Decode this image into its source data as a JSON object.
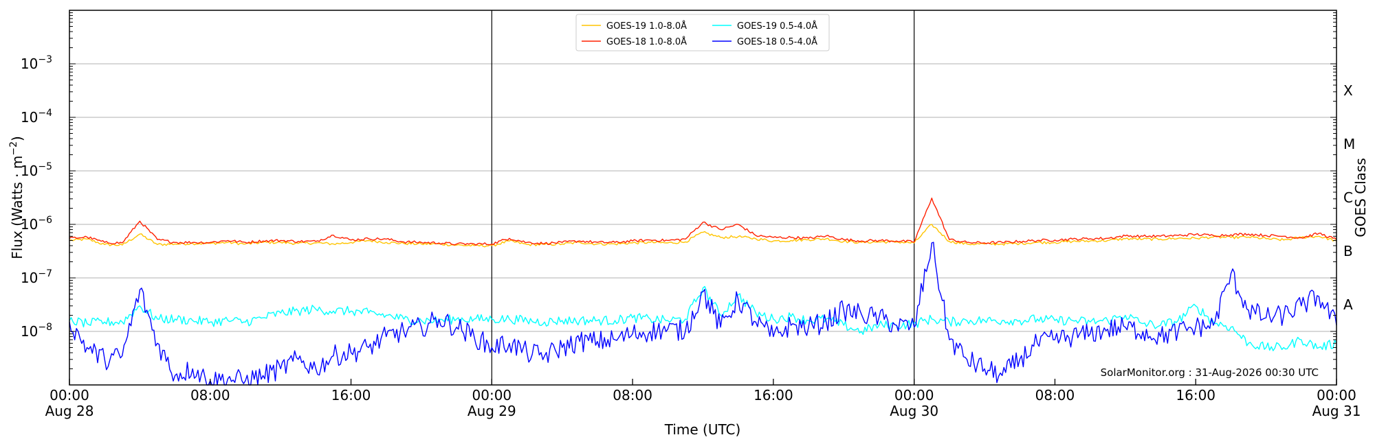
{
  "chart_data": {
    "type": "line",
    "xlabel": "Time (UTC)",
    "ylabel_main": "Flux (Watts · m",
    "ylabel_sup": "−2",
    "ylabel_close": ")",
    "y2label": "GOES Class",
    "yscale": "log",
    "ylim": [
      1e-09,
      0.01
    ],
    "xlim": [
      "2026-08-28T00:00",
      "2026-08-31T00:00"
    ],
    "grid": "horizontal",
    "legend_position": "top-center",
    "credit": "SolarMonitor.org : 31-Aug-2026 00:30 UTC",
    "x_ticks": [
      {
        "time": "2026-08-28T00:00",
        "line1": "00:00",
        "line2": "Aug 28"
      },
      {
        "time": "2026-08-28T08:00",
        "line1": "08:00",
        "line2": ""
      },
      {
        "time": "2026-08-28T16:00",
        "line1": "16:00",
        "line2": ""
      },
      {
        "time": "2026-08-29T00:00",
        "line1": "00:00",
        "line2": "Aug 29"
      },
      {
        "time": "2026-08-29T08:00",
        "line1": "08:00",
        "line2": ""
      },
      {
        "time": "2026-08-29T16:00",
        "line1": "16:00",
        "line2": ""
      },
      {
        "time": "2026-08-30T00:00",
        "line1": "00:00",
        "line2": "Aug 30"
      },
      {
        "time": "2026-08-30T08:00",
        "line1": "08:00",
        "line2": ""
      },
      {
        "time": "2026-08-30T16:00",
        "line1": "16:00",
        "line2": ""
      },
      {
        "time": "2026-08-31T00:00",
        "line1": "00:00",
        "line2": "Aug 31"
      }
    ],
    "day_boundaries": [
      "2026-08-29T00:00",
      "2026-08-30T00:00"
    ],
    "y_ticks": [
      {
        "value": 1e-08,
        "label": "10",
        "exp": "−8"
      },
      {
        "value": 1e-07,
        "label": "10",
        "exp": "−7"
      },
      {
        "value": 1e-06,
        "label": "10",
        "exp": "−6"
      },
      {
        "value": 1e-05,
        "label": "10",
        "exp": "−5"
      },
      {
        "value": 0.0001,
        "label": "10",
        "exp": "−4"
      },
      {
        "value": 0.001,
        "label": "10",
        "exp": "−3"
      }
    ],
    "goes_classes": [
      {
        "label": "A",
        "value": 3.16e-08
      },
      {
        "label": "B",
        "value": 3.16e-07
      },
      {
        "label": "C",
        "value": 3.16e-06
      },
      {
        "label": "M",
        "value": 3.16e-05
      },
      {
        "label": "X",
        "value": 0.000316
      }
    ],
    "series": [
      {
        "name": "GOES-19 1.0-8.0Å",
        "color": "#ffc400",
        "start": "2026-08-28T00:00",
        "step_minutes": 60,
        "values": [
          5e-07,
          5.3e-07,
          4.2e-07,
          4.1e-07,
          6.6e-07,
          4.2e-07,
          4.3e-07,
          4.4e-07,
          4.4e-07,
          4.6e-07,
          4.3e-07,
          4.6e-07,
          4.6e-07,
          4.4e-07,
          4.5e-07,
          4.3e-07,
          4.6e-07,
          5e-07,
          4.6e-07,
          4.4e-07,
          4.3e-07,
          4.3e-07,
          4.1e-07,
          4e-07,
          4e-07,
          4.9e-07,
          4.2e-07,
          4.2e-07,
          4.3e-07,
          4.6e-07,
          4.3e-07,
          4.3e-07,
          4.5e-07,
          4.6e-07,
          4.5e-07,
          4.7e-07,
          7.1e-07,
          5.7e-07,
          5.9e-07,
          5.4e-07,
          4.9e-07,
          5e-07,
          5.2e-07,
          5.4e-07,
          4.8e-07,
          4.6e-07,
          4.7e-07,
          4.7e-07,
          4.5e-07,
          1e-06,
          4.8e-07,
          4.3e-07,
          4.3e-07,
          4.3e-07,
          4.4e-07,
          4.6e-07,
          4.6e-07,
          4.8e-07,
          4.9e-07,
          5e-07,
          5.4e-07,
          5.3e-07,
          5.3e-07,
          5.5e-07,
          5.5e-07,
          5.8e-07,
          5.7e-07,
          5.8e-07,
          5.4e-07,
          5.1e-07,
          5.7e-07,
          6e-07,
          4.9e-07
        ]
      },
      {
        "name": "GOES-18 1.0-8.0Å",
        "color": "#ff2000",
        "start": "2026-08-28T00:00",
        "step_minutes": 60,
        "values": [
          5.5e-07,
          5.8e-07,
          4.6e-07,
          4.5e-07,
          1.15e-06,
          5.2e-07,
          4.6e-07,
          4.6e-07,
          4.6e-07,
          5e-07,
          4.6e-07,
          4.9e-07,
          5e-07,
          4.8e-07,
          4.8e-07,
          6.3e-07,
          5.1e-07,
          5.4e-07,
          5.3e-07,
          4.7e-07,
          4.6e-07,
          4.5e-07,
          4.3e-07,
          4.3e-07,
          4.3e-07,
          5.5e-07,
          4.6e-07,
          4.4e-07,
          4.6e-07,
          4.9e-07,
          4.6e-07,
          4.6e-07,
          4.9e-07,
          5.1e-07,
          5e-07,
          5.3e-07,
          1.1e-06,
          8e-07,
          1e-06,
          6.2e-07,
          5.7e-07,
          5.7e-07,
          5.5e-07,
          6.1e-07,
          5.2e-07,
          4.9e-07,
          5e-07,
          4.9e-07,
          4.7e-07,
          3.1e-06,
          5.2e-07,
          4.6e-07,
          4.5e-07,
          4.6e-07,
          4.8e-07,
          5e-07,
          5.1e-07,
          5.3e-07,
          5.4e-07,
          5.5e-07,
          6.1e-07,
          6e-07,
          6e-07,
          6.2e-07,
          6.5e-07,
          6.2e-07,
          6.4e-07,
          6.6e-07,
          6.2e-07,
          6e-07,
          5.6e-07,
          6.8e-07,
          5.2e-07
        ]
      },
      {
        "name": "GOES-19 0.5-4.0Å",
        "color": "#00ffff",
        "start": "2026-08-28T00:00",
        "step_minutes": 60,
        "values": [
          1.6e-08,
          1.4e-08,
          1.5e-08,
          1.5e-08,
          3e-08,
          1.7e-08,
          1.7e-08,
          1.6e-08,
          1.5e-08,
          1.6e-08,
          1.5e-08,
          1.8e-08,
          2.2e-08,
          2.4e-08,
          2.6e-08,
          2.4e-08,
          2.4e-08,
          2.2e-08,
          2e-08,
          1.7e-08,
          1.6e-08,
          1.6e-08,
          1.7e-08,
          1.7e-08,
          1.7e-08,
          1.7e-08,
          1.6e-08,
          1.5e-08,
          1.6e-08,
          1.6e-08,
          1.6e-08,
          1.6e-08,
          1.8e-08,
          1.7e-08,
          1.6e-08,
          1.7e-08,
          6.5e-08,
          2e-08,
          4.8e-08,
          2.2e-08,
          1.7e-08,
          1.9e-08,
          1.6e-08,
          1.7e-08,
          1.3e-08,
          1e-08,
          1.3e-08,
          1.3e-08,
          1.4e-08,
          1.7e-08,
          1.5e-08,
          1.6e-08,
          1.6e-08,
          1.6e-08,
          1.6e-08,
          1.7e-08,
          1.6e-08,
          1.6e-08,
          1.5e-08,
          1.6e-08,
          2e-08,
          1.4e-08,
          1.3e-08,
          1.6e-08,
          3e-08,
          1.5e-08,
          1.2e-08,
          6e-09,
          5e-09,
          5e-09,
          7e-09,
          5e-09,
          6e-09
        ]
      },
      {
        "name": "GOES-18 0.5-4.0Å",
        "color": "#0000ff",
        "start": "2026-08-28T00:00",
        "step_minutes": 60,
        "values": [
          1.5e-08,
          5e-09,
          3e-09,
          3.5e-09,
          6e-08,
          6e-09,
          1.5e-09,
          2e-09,
          1.2e-09,
          1.3e-09,
          1.2e-09,
          1.5e-09,
          2e-09,
          3e-09,
          2e-09,
          3.5e-09,
          4e-09,
          5e-09,
          8e-09,
          1e-08,
          1.2e-08,
          1.7e-08,
          1.2e-08,
          8e-09,
          5e-09,
          6e-09,
          4e-09,
          3.5e-09,
          5e-09,
          6.5e-09,
          6.5e-09,
          7e-09,
          9e-09,
          1e-08,
          1.1e-08,
          1e-08,
          5.5e-08,
          1.2e-08,
          4e-08,
          1.5e-08,
          8e-09,
          1.3e-08,
          1.2e-08,
          1.5e-08,
          2.5e-08,
          2.1e-08,
          1.8e-08,
          1.3e-08,
          1.2e-08,
          4.5e-07,
          7e-09,
          3e-09,
          2e-09,
          1.5e-09,
          3e-09,
          6e-09,
          7e-09,
          8e-09,
          9e-09,
          1.1e-08,
          1.2e-08,
          1e-08,
          8e-09,
          1e-08,
          1.2e-08,
          1.3e-08,
          1.2e-07,
          2.5e-08,
          1.8e-08,
          2e-08,
          3e-08,
          4.5e-08,
          1.3e-08
        ]
      }
    ]
  }
}
